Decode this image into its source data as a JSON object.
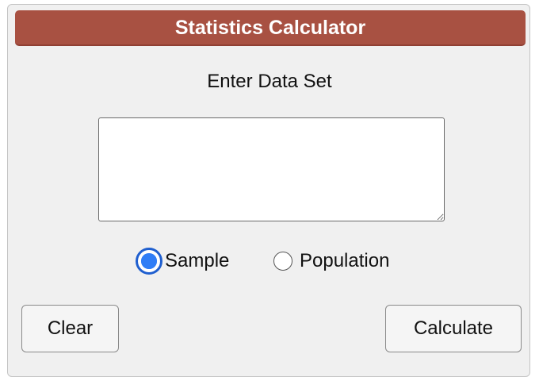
{
  "header": {
    "title": "Statistics Calculator"
  },
  "form": {
    "data_label": "Enter Data Set",
    "data_value": "",
    "data_placeholder": "",
    "options": [
      {
        "label": "Sample",
        "selected": true
      },
      {
        "label": "Population",
        "selected": false
      }
    ]
  },
  "buttons": {
    "clear_label": "Clear",
    "calculate_label": "Calculate"
  },
  "colors": {
    "header_bg": "#a85142",
    "radio_accent": "#2f7df6",
    "panel_bg": "#f0f0f0"
  }
}
